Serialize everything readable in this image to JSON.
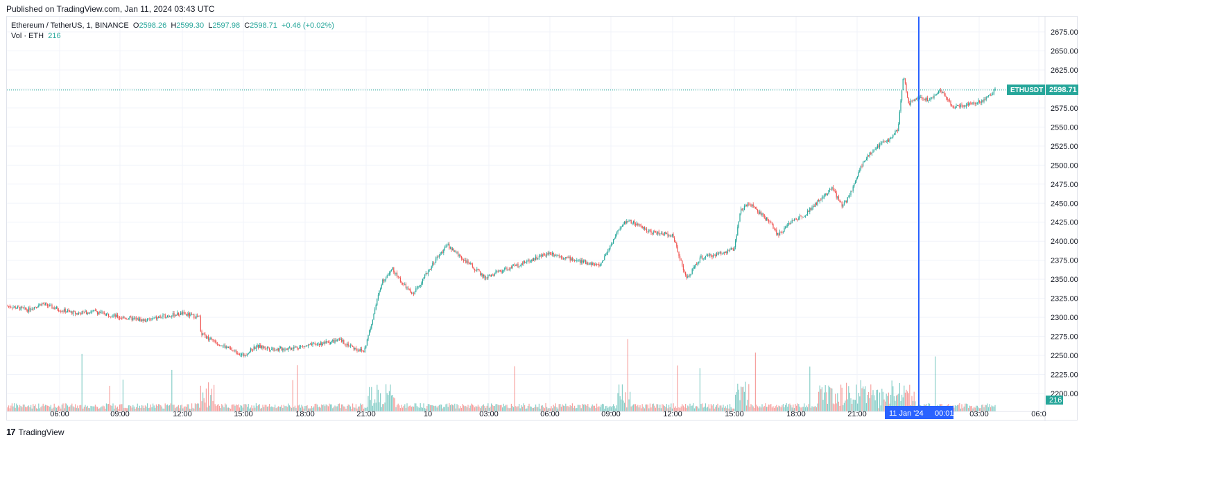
{
  "published": "Published on TradingView.com, Jan 11, 2024 03:43 UTC",
  "legend": {
    "symbol": "Ethereum / TetherUS, 1, BINANCE",
    "open_label": "O",
    "open": "2598.26",
    "high_label": "H",
    "high": "2599.30",
    "low_label": "L",
    "low": "2597.98",
    "close_label": "C",
    "close": "2598.71",
    "change": "+0.46 (+0.02%)",
    "vol_label": "Vol · ETH",
    "vol": "216"
  },
  "price_tag": {
    "symbol": "ETHUSDT",
    "price": "2598.71"
  },
  "volume_tag": "216",
  "crosshair_label": {
    "date": "11 Jan '24",
    "time": "00:01"
  },
  "footer": {
    "logo": "17",
    "brand": "TradingView"
  },
  "colors": {
    "up": "#26a69a",
    "down": "#ef5350",
    "crosshair": "#2962ff",
    "grid": "#f0f3fa"
  },
  "chart_data": {
    "type": "candlestick",
    "title": "Ethereum / TetherUS, 1, BINANCE",
    "y_ticks": [
      2200,
      2225,
      2250,
      2275,
      2300,
      2325,
      2350,
      2375,
      2400,
      2425,
      2450,
      2475,
      2500,
      2525,
      2550,
      2575,
      2600,
      2625,
      2650,
      2675
    ],
    "ylim": [
      2188,
      2694
    ],
    "x_ticks": [
      "06:00",
      "09:00",
      "12:00",
      "15:00",
      "18:00",
      "21:00",
      "10",
      "03:00",
      "06:00",
      "09:00",
      "12:00",
      "15:00",
      "18:00",
      "21:00",
      "11 Jan '24",
      "03:00",
      "06:0"
    ],
    "last_price": 2598.71,
    "price_path": [
      [
        "03:30",
        2315
      ],
      [
        "04:00",
        2310
      ],
      [
        "05:00",
        2318
      ],
      [
        "06:00",
        2310
      ],
      [
        "07:00",
        2305
      ],
      [
        "08:00",
        2308
      ],
      [
        "09:00",
        2300
      ],
      [
        "10:00",
        2296
      ],
      [
        "11:00",
        2302
      ],
      [
        "12:00",
        2305
      ],
      [
        "13:00",
        2300
      ],
      [
        "13:01",
        2272
      ],
      [
        "13:30",
        2278
      ],
      [
        "14:00",
        2272
      ],
      [
        "15:00",
        2250
      ],
      [
        "16:00",
        2262
      ],
      [
        "17:00",
        2258
      ],
      [
        "18:00",
        2262
      ],
      [
        "19:00",
        2266
      ],
      [
        "20:00",
        2270
      ],
      [
        "21:00",
        2260
      ],
      [
        "21:20",
        2255
      ],
      [
        "21:40",
        2290
      ],
      [
        "22:00",
        2345
      ],
      [
        "22:30",
        2365
      ],
      [
        "23:00",
        2345
      ],
      [
        "23:30",
        2330
      ],
      [
        "00:00",
        2350
      ],
      [
        "00:30",
        2372
      ],
      [
        "01:00",
        2395
      ],
      [
        "02:00",
        2375
      ],
      [
        "03:00",
        2352
      ],
      [
        "04:00",
        2362
      ],
      [
        "05:00",
        2370
      ],
      [
        "06:00",
        2385
      ],
      [
        "07:00",
        2380
      ],
      [
        "08:00",
        2375
      ],
      [
        "09:00",
        2368
      ],
      [
        "09:30",
        2420
      ],
      [
        "10:00",
        2428
      ],
      [
        "11:00",
        2412
      ],
      [
        "12:00",
        2408
      ],
      [
        "12:30",
        2380
      ],
      [
        "13:00",
        2350
      ],
      [
        "13:30",
        2378
      ],
      [
        "14:00",
        2382
      ],
      [
        "15:00",
        2390
      ],
      [
        "15:30",
        2440
      ],
      [
        "16:00",
        2450
      ],
      [
        "17:00",
        2425
      ],
      [
        "17:30",
        2408
      ],
      [
        "18:00",
        2425
      ],
      [
        "19:00",
        2435
      ],
      [
        "20:00",
        2470
      ],
      [
        "20:30",
        2445
      ],
      [
        "21:00",
        2460
      ],
      [
        "21:30",
        2505
      ],
      [
        "22:00",
        2525
      ],
      [
        "22:30",
        2535
      ],
      [
        "23:00",
        2548
      ],
      [
        "23:30",
        2620
      ],
      [
        "23:45",
        2580
      ],
      [
        "00:00",
        2590
      ],
      [
        "00:30",
        2585
      ],
      [
        "01:00",
        2600
      ],
      [
        "01:30",
        2576
      ],
      [
        "02:00",
        2580
      ],
      [
        "03:00",
        2585
      ],
      [
        "03:40",
        2598.71
      ]
    ],
    "volume_ylim": [
      0,
      2200
    ]
  }
}
